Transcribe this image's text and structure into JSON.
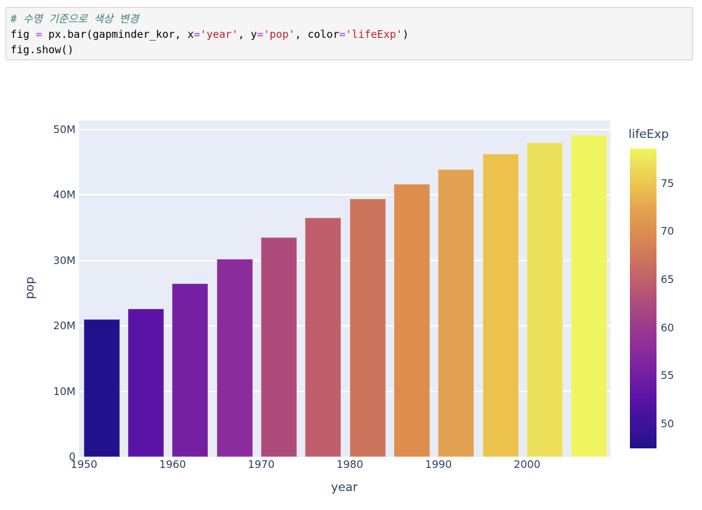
{
  "code_cell": {
    "lines": [
      {
        "tokens": [
          {
            "t": "# 수명 기준으로 색상 변경",
            "c": "comment"
          }
        ]
      },
      {
        "tokens": [
          {
            "t": "fig ",
            "c": "plain"
          },
          {
            "t": "=",
            "c": "op"
          },
          {
            "t": " px.bar(gapminder_kor, x",
            "c": "plain"
          },
          {
            "t": "=",
            "c": "op"
          },
          {
            "t": "'year'",
            "c": "str"
          },
          {
            "t": ", y",
            "c": "plain"
          },
          {
            "t": "=",
            "c": "op"
          },
          {
            "t": "'pop'",
            "c": "str"
          },
          {
            "t": ", color",
            "c": "plain"
          },
          {
            "t": "=",
            "c": "op"
          },
          {
            "t": "'lifeExp'",
            "c": "str"
          },
          {
            "t": ")",
            "c": "plain"
          }
        ]
      },
      {
        "tokens": [
          {
            "t": "fig.show()",
            "c": "plain"
          }
        ]
      }
    ]
  },
  "chart_data": {
    "type": "bar",
    "title": "",
    "xlabel": "year",
    "ylabel": "pop",
    "x": [
      1952,
      1957,
      1962,
      1967,
      1972,
      1977,
      1982,
      1987,
      1992,
      1997,
      2002,
      2007
    ],
    "pop": [
      20947571,
      22611552,
      26420307,
      30131000,
      33505000,
      36436000,
      39326000,
      41622000,
      43805450,
      46173816,
      47969150,
      49044790
    ],
    "lifeExp": [
      47.453,
      52.681,
      55.292,
      57.716,
      62.612,
      64.766,
      67.123,
      69.81,
      72.244,
      74.647,
      77.045,
      78.623
    ],
    "bar_colors": [
      "#21118c",
      "#5a13a7",
      "#7520a2",
      "#8c2b9b",
      "#ad4c7c",
      "#c05f6b",
      "#cd745c",
      "#dd8d4e",
      "#e3a251",
      "#ecc24d",
      "#ede05b",
      "#f0f55f"
    ],
    "xticks": {
      "values": [
        1950,
        1960,
        1970,
        1980,
        1990,
        2000
      ],
      "labels": [
        "1950",
        "1960",
        "1970",
        "1980",
        "1990",
        "2000"
      ]
    },
    "yticks": {
      "values_millions": [
        0,
        10,
        20,
        30,
        40,
        50
      ],
      "labels": [
        "0",
        "10M",
        "20M",
        "30M",
        "40M",
        "50M"
      ]
    },
    "ylim_millions": [
      0,
      51.34
    ],
    "grid": "horizontal-white",
    "plot_bg": "#e8ecf6",
    "text_color": "#2a3f5f",
    "colorbar": {
      "title": "lifeExp",
      "min": 47.453,
      "max": 78.623,
      "ticks": [
        50,
        55,
        60,
        65,
        70,
        75
      ],
      "colorscale": "plasma"
    }
  }
}
